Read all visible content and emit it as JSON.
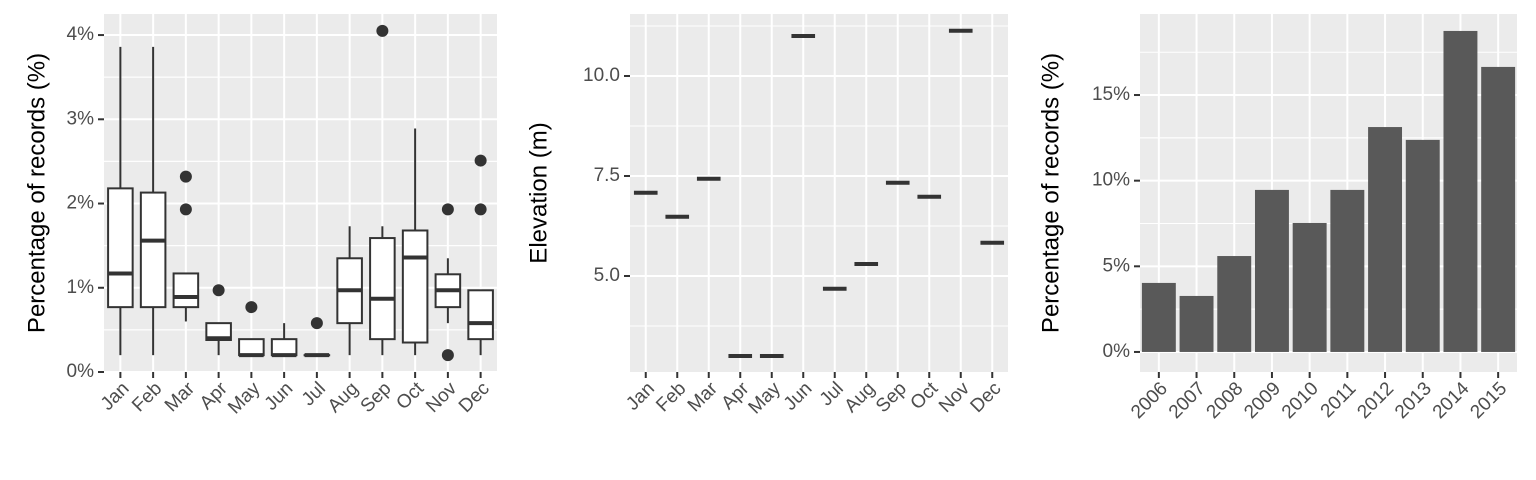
{
  "chart_data": [
    {
      "type": "boxplot",
      "y_label": "Percentage of records (%)",
      "categories": [
        "Jan",
        "Feb",
        "Mar",
        "Apr",
        "May",
        "Jun",
        "Jul",
        "Aug",
        "Sep",
        "Oct",
        "Nov",
        "Dec"
      ],
      "boxes": [
        {
          "low": 0.2,
          "q1": 0.77,
          "median": 1.17,
          "q3": 2.18,
          "high": 3.86,
          "outliers": []
        },
        {
          "low": 0.2,
          "q1": 0.77,
          "median": 1.56,
          "q3": 2.13,
          "high": 3.86,
          "outliers": []
        },
        {
          "low": 0.6,
          "q1": 0.77,
          "median": 0.89,
          "q3": 1.17,
          "high": 1.17,
          "outliers": [
            1.93,
            2.32
          ]
        },
        {
          "low": 0.2,
          "q1": 0.38,
          "median": 0.4,
          "q3": 0.58,
          "high": 0.58,
          "outliers": [
            0.97
          ]
        },
        {
          "low": 0.2,
          "q1": 0.2,
          "median": 0.2,
          "q3": 0.39,
          "high": 0.39,
          "outliers": [
            0.77
          ]
        },
        {
          "low": 0.2,
          "q1": 0.2,
          "median": 0.2,
          "q3": 0.39,
          "high": 0.58,
          "outliers": []
        },
        {
          "low": 0.2,
          "q1": 0.2,
          "median": 0.2,
          "q3": 0.2,
          "high": 0.2,
          "outliers": [
            0.58
          ]
        },
        {
          "low": 0.2,
          "q1": 0.58,
          "median": 0.97,
          "q3": 1.35,
          "high": 1.73,
          "outliers": []
        },
        {
          "low": 0.2,
          "q1": 0.39,
          "median": 0.87,
          "q3": 1.59,
          "high": 1.73,
          "outliers": [
            4.05
          ]
        },
        {
          "low": 0.2,
          "q1": 0.35,
          "median": 1.36,
          "q3": 1.68,
          "high": 2.89,
          "outliers": []
        },
        {
          "low": 0.58,
          "q1": 0.77,
          "median": 0.97,
          "q3": 1.16,
          "high": 1.35,
          "outliers": [
            1.93,
            0.2
          ]
        },
        {
          "low": 0.2,
          "q1": 0.39,
          "median": 0.58,
          "q3": 0.97,
          "high": 0.97,
          "outliers": [
            1.93,
            2.51
          ]
        }
      ],
      "ylim": [
        0,
        4.25
      ],
      "yticks": [
        {
          "value": 0,
          "label": "0%"
        },
        {
          "value": 1,
          "label": "1%"
        },
        {
          "value": 2,
          "label": "2%"
        },
        {
          "value": 3,
          "label": "3%"
        },
        {
          "value": 4,
          "label": "4%"
        }
      ],
      "grid": true
    },
    {
      "type": "median",
      "y_label": "Elevation (m)",
      "categories": [
        "Jan",
        "Feb",
        "Mar",
        "Apr",
        "May",
        "Jun",
        "Jul",
        "Aug",
        "Sep",
        "Oct",
        "Nov",
        "Dec"
      ],
      "values": [
        7.08,
        6.48,
        7.43,
        3.0,
        3.0,
        11.0,
        4.68,
        5.3,
        7.33,
        6.98,
        11.13,
        5.83
      ],
      "ylim": [
        2.6,
        11.55
      ],
      "yticks": [
        {
          "value": 5,
          "label": "5.0"
        },
        7.5,
        {
          "value": 10,
          "label": "10.0"
        }
      ],
      "grid": true
    },
    {
      "type": "bar",
      "y_label": "Percentage of records (%)",
      "color": "#595959",
      "categories": [
        "2006",
        "2007",
        "2008",
        "2009",
        "2010",
        "2011",
        "2012",
        "2013",
        "2014",
        "2015"
      ],
      "values": [
        4.03,
        3.27,
        5.6,
        9.46,
        7.53,
        9.46,
        13.13,
        12.38,
        18.74,
        16.64
      ],
      "ylim": [
        -1.17,
        19.73
      ],
      "yticks": [
        {
          "value": 0,
          "label": "0%"
        },
        {
          "value": 5,
          "label": "5%"
        },
        {
          "value": 10,
          "label": "10%"
        },
        {
          "value": 15,
          "label": "15%"
        }
      ],
      "grid": true
    }
  ]
}
